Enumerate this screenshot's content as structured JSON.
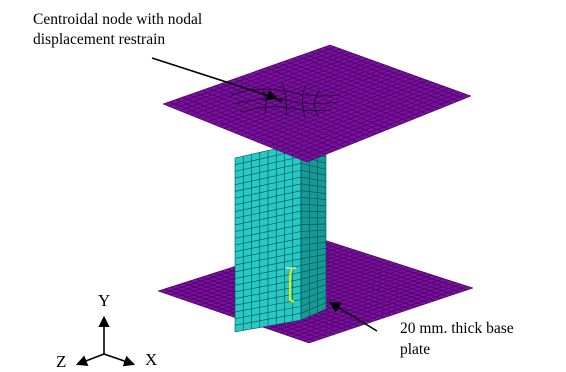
{
  "annotations": {
    "top_line1": "Centroidal node with nodal",
    "top_line2": "displacement restrain",
    "bottom_line1": "20 mm. thick base",
    "bottom_line2": "plate"
  },
  "triad": {
    "y": "Y",
    "z": "Z",
    "x": "X"
  },
  "colors": {
    "plate": "#7a0f9e",
    "plate_mesh": "#3a0052",
    "column": "#27c9c4",
    "column_mesh": "#0a4e50",
    "column_dark": "#169a96",
    "marker": "#e8e800"
  }
}
